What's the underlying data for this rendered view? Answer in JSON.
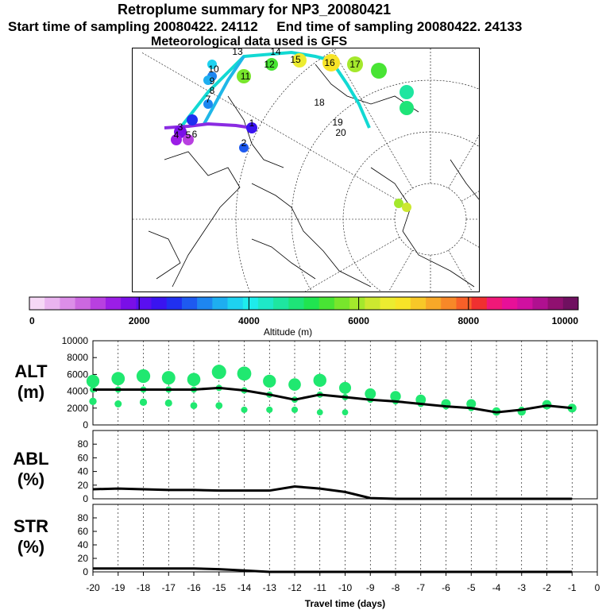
{
  "header": {
    "title": "Retroplume summary for NP3_20080421",
    "sampling_start_label": "Start time of sampling 20080422. 24112",
    "sampling_end_label": "End time of sampling 20080422. 24133",
    "met_data_label": "Meteorological data used is GFS"
  },
  "map": {
    "plume_labels": [
      "1",
      "2",
      "3",
      "4",
      "5",
      "6",
      "7",
      "8",
      "9",
      "10",
      "11",
      "12",
      "13",
      "14",
      "15",
      "16",
      "17",
      "18",
      "19",
      "20"
    ],
    "track_colors": {
      "main": "#1fb7e8",
      "east": "#12d9d3",
      "west": "#8a2be2"
    }
  },
  "colorbar": {
    "label": "Altitude (m)",
    "ticks": [
      "0",
      "2000",
      "4000",
      "6000",
      "8000",
      "10000"
    ],
    "tick_values": [
      0,
      2000,
      4000,
      6000,
      8000,
      10000
    ],
    "colors": [
      "#f6d8f6",
      "#eab4f0",
      "#dc8ee8",
      "#cc68e0",
      "#b840e0",
      "#9b1ee6",
      "#7a0fe8",
      "#5a0ff0",
      "#3a14f0",
      "#2030f0",
      "#1e5af0",
      "#1e86f0",
      "#1eaef0",
      "#1ed2f0",
      "#1eecec",
      "#1ee8c8",
      "#1ee6a0",
      "#1ee478",
      "#20e450",
      "#48e434",
      "#78e62c",
      "#a4e82c",
      "#cce830",
      "#ecec30",
      "#f8e428",
      "#f8c828",
      "#f8a828",
      "#f88828",
      "#f86028",
      "#f03030",
      "#f01878",
      "#e81098",
      "#d010a0",
      "#b01090",
      "#901070",
      "#701060"
    ]
  },
  "chart_data": [
    {
      "type": "scatter",
      "name": "ALT",
      "ylabel": "ALT (m)",
      "ylabel_lines": [
        "ALT",
        "(m)"
      ],
      "xlim": [
        -20,
        0
      ],
      "ylim": [
        0,
        10000
      ],
      "yticks": [
        "0",
        "2000",
        "4000",
        "6000",
        "8000",
        "10000"
      ],
      "x": [
        -20,
        -19,
        -18,
        -17,
        -16,
        -15,
        -14,
        -13,
        -12,
        -11,
        -10,
        -9,
        -8,
        -7,
        -6,
        -5,
        -4,
        -3,
        -2,
        -1
      ],
      "mean_line": [
        4200,
        4200,
        4200,
        4200,
        4200,
        4400,
        4100,
        3600,
        3000,
        3600,
        3300,
        3000,
        2800,
        2500,
        2200,
        2000,
        1500,
        1800,
        2300,
        2000
      ],
      "upper_points": [
        5200,
        5500,
        5800,
        5600,
        5400,
        6300,
        6100,
        5200,
        4800,
        5300,
        4400,
        3700,
        3400,
        3000,
        2500,
        2500,
        1600,
        1600,
        2400,
        2000
      ],
      "lower_points": [
        2800,
        2500,
        2700,
        2600,
        2300,
        2300,
        1800,
        1800,
        1800,
        1500,
        1500,
        0,
        0,
        0,
        0,
        0,
        0,
        0,
        0,
        0
      ],
      "xticks": [
        "-20",
        "-19",
        "-18",
        "-17",
        "-16",
        "-15",
        "-14",
        "-13",
        "-12",
        "-11",
        "-10",
        "-9",
        "-8",
        "-7",
        "-6",
        "-5",
        "-4",
        "-3",
        "-2",
        "-1",
        "0"
      ]
    },
    {
      "type": "line",
      "name": "ABL",
      "ylabel": "ABL (%)",
      "ylabel_lines": [
        "ABL",
        "(%)"
      ],
      "xlim": [
        -20,
        0
      ],
      "ylim": [
        0,
        100
      ],
      "yticks": [
        "0",
        "20",
        "40",
        "60",
        "80"
      ],
      "x": [
        -20,
        -19,
        -18,
        -17,
        -16,
        -15,
        -14,
        -13,
        -12,
        -11,
        -10,
        -9,
        -8,
        -7,
        -6,
        -5,
        -4,
        -3,
        -2,
        -1
      ],
      "values": [
        14,
        15,
        14,
        13,
        13,
        12,
        12,
        12,
        18,
        15,
        10,
        1,
        0,
        0,
        0,
        0,
        0,
        0,
        0,
        0
      ]
    },
    {
      "type": "line",
      "name": "STR",
      "ylabel": "STR (%)",
      "ylabel_lines": [
        "STR",
        "(%)"
      ],
      "xlim": [
        -20,
        0
      ],
      "ylim": [
        0,
        100
      ],
      "yticks": [
        "0",
        "20",
        "40",
        "60",
        "80"
      ],
      "x": [
        -20,
        -19,
        -18,
        -17,
        -16,
        -15,
        -14,
        -13,
        -12,
        -11,
        -10,
        -9,
        -8,
        -7,
        -6,
        -5,
        -4,
        -3,
        -2,
        -1
      ],
      "values": [
        5,
        5,
        5,
        5,
        5,
        4,
        2,
        0,
        0,
        0,
        0,
        0,
        0,
        0,
        0,
        0,
        0,
        0,
        0,
        0
      ],
      "xlabel": "Travel time (days)"
    }
  ]
}
